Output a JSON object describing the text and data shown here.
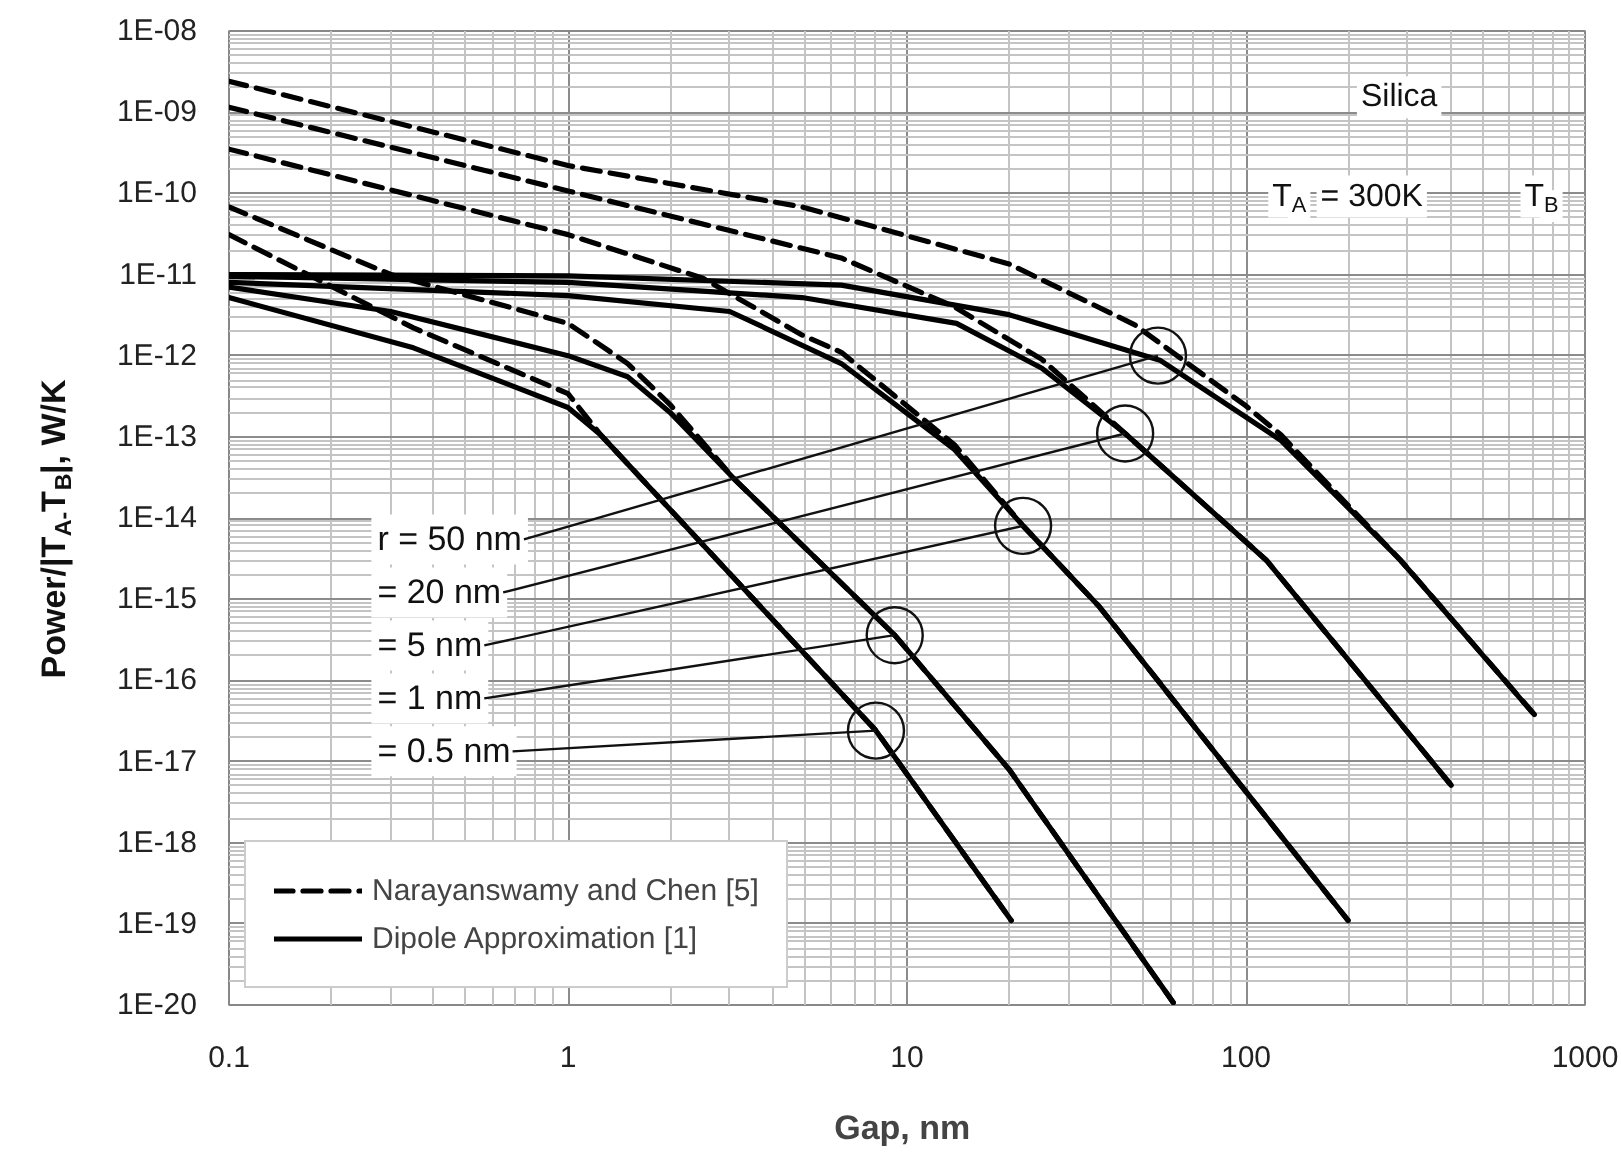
{
  "chart_data": {
    "type": "line",
    "xlabel": "Gap,  nm",
    "ylabel": "Power/|T$_{A-}$T$_{B}$|,   W/K",
    "log": "xy",
    "grid": true,
    "legend": "bottom left",
    "xlim": [
      0.1,
      1000
    ],
    "xticks": [
      0.1,
      1,
      10,
      100,
      1000
    ],
    "ylim": [
      1e-20,
      1e-08
    ],
    "yticks": [
      {
        "value": 1e-08,
        "label": "1E-08"
      },
      {
        "value": 1e-09,
        "label": "1E-09"
      },
      {
        "value": 1e-10,
        "label": "1E-10"
      },
      {
        "value": 1e-11,
        "label": "1E-11"
      },
      {
        "value": 1e-12,
        "label": "1E-12"
      },
      {
        "value": 1e-13,
        "label": "1E-13"
      },
      {
        "value": 1e-14,
        "label": "1E-14"
      },
      {
        "value": 1e-15,
        "label": "1E-15"
      },
      {
        "value": 1e-16,
        "label": "1E-16"
      },
      {
        "value": 1e-17,
        "label": "1E-17"
      },
      {
        "value": 1e-18,
        "label": "1E-18"
      },
      {
        "value": 1e-19,
        "label": "1E-19"
      },
      {
        "value": 1e-20,
        "label": "1E-20"
      }
    ],
    "series": [
      {
        "name": "Narayanswamy and Chen [5]",
        "color": "#000000",
        "line_style": "dashed",
        "x": [
          0.1,
          1,
          4.9,
          20,
          47,
          100,
          127,
          286,
          709
        ],
        "values": [
          2.4e-09,
          2.2e-10,
          6.8e-11,
          1.35e-11,
          2.4e-12,
          2.4e-13,
          1.05e-13,
          3e-15,
          3.8e-17
        ]
      },
      {
        "color": "#000000",
        "line_style": "dashed",
        "x": [
          0.1,
          1,
          6.4,
          13.8,
          25,
          44,
          115,
          403
        ],
        "values": [
          1.15e-09,
          1.07e-10,
          1.6e-11,
          4e-12,
          9e-13,
          1.1e-13,
          3e-15,
          5.1e-18
        ]
      },
      {
        "color": "#000000",
        "line_style": "dashed",
        "x": [
          0.1,
          1,
          2.5,
          4.9,
          6.4,
          13.8,
          22,
          37,
          200
        ],
        "values": [
          3.5e-10,
          3.1e-11,
          9e-12,
          1.8e-12,
          1.1e-12,
          8e-14,
          8e-15,
          8e-16,
          1.1e-19
        ]
      },
      {
        "color": "#000000",
        "line_style": "dashed",
        "x": [
          0.1,
          0.3,
          1,
          1.5,
          2,
          3.1,
          9.2,
          20,
          61
        ],
        "values": [
          6.8e-11,
          1e-11,
          2.5e-12,
          8e-13,
          2.5e-13,
          3e-14,
          3.6e-16,
          8e-18,
          1.07e-20
        ]
      },
      {
        "color": "#000000",
        "line_style": "dashed",
        "x": [
          0.1,
          0.35,
          1,
          1.25,
          8.1,
          20.3
        ],
        "values": [
          3.1e-11,
          2.2e-12,
          3.4e-13,
          1.05e-13,
          2.4e-17,
          1.1e-19
        ]
      },
      {
        "name": "Dipole Approximation [1]",
        "color": "#000000",
        "line_style": "solid",
        "x": [
          0.1,
          1,
          6.4,
          20,
          56,
          127,
          286,
          700
        ],
        "values": [
          1e-11,
          9.6e-12,
          7.4e-12,
          3.2e-12,
          8.7e-13,
          9e-14,
          3e-15,
          4e-17
        ]
      },
      {
        "color": "#000000",
        "line_style": "solid",
        "x": [
          0.1,
          1,
          4.9,
          14,
          25,
          44,
          115,
          403
        ],
        "values": [
          9.5e-12,
          8e-12,
          5.2e-12,
          2.5e-12,
          7e-13,
          1.1e-13,
          3e-15,
          5.1e-18
        ]
      },
      {
        "color": "#000000",
        "line_style": "solid",
        "x": [
          0.1,
          1,
          3,
          6.4,
          13.8,
          22,
          37,
          200
        ],
        "values": [
          8e-12,
          5.5e-12,
          3.5e-12,
          8e-13,
          7e-14,
          8e-15,
          8e-16,
          1.1e-19
        ]
      },
      {
        "color": "#000000",
        "line_style": "solid",
        "x": [
          0.1,
          0.3,
          1,
          1.5,
          2,
          3.1,
          9.2,
          20,
          61
        ],
        "values": [
          7e-12,
          3.5e-12,
          1e-12,
          5.5e-13,
          2e-13,
          3e-14,
          3.6e-16,
          8e-18,
          1.07e-20
        ]
      },
      {
        "color": "#000000",
        "line_style": "solid",
        "x": [
          0.1,
          0.35,
          1,
          1.25,
          8.1,
          20.3
        ],
        "values": [
          5.2e-12,
          1.25e-12,
          2.3e-13,
          1.05e-13,
          2.4e-17,
          1.1e-19
        ]
      }
    ],
    "annotations": [
      {
        "text": "r = 50 nm",
        "x": 55,
        "y": 1e-12
      },
      {
        "text": "= 20 nm",
        "x": 44,
        "y": 1.1e-13
      },
      {
        "text": "= 5 nm",
        "x": 22,
        "y": 8e-15
      },
      {
        "text": "= 1 nm",
        "x": 9.2,
        "y": 3.6e-16
      },
      {
        "text": "= 0.5 nm",
        "x": 8.1,
        "y": 2.4e-17
      },
      "Silica",
      "T$_{A}$ = 300K",
      "T$_{B}$"
    ]
  }
}
